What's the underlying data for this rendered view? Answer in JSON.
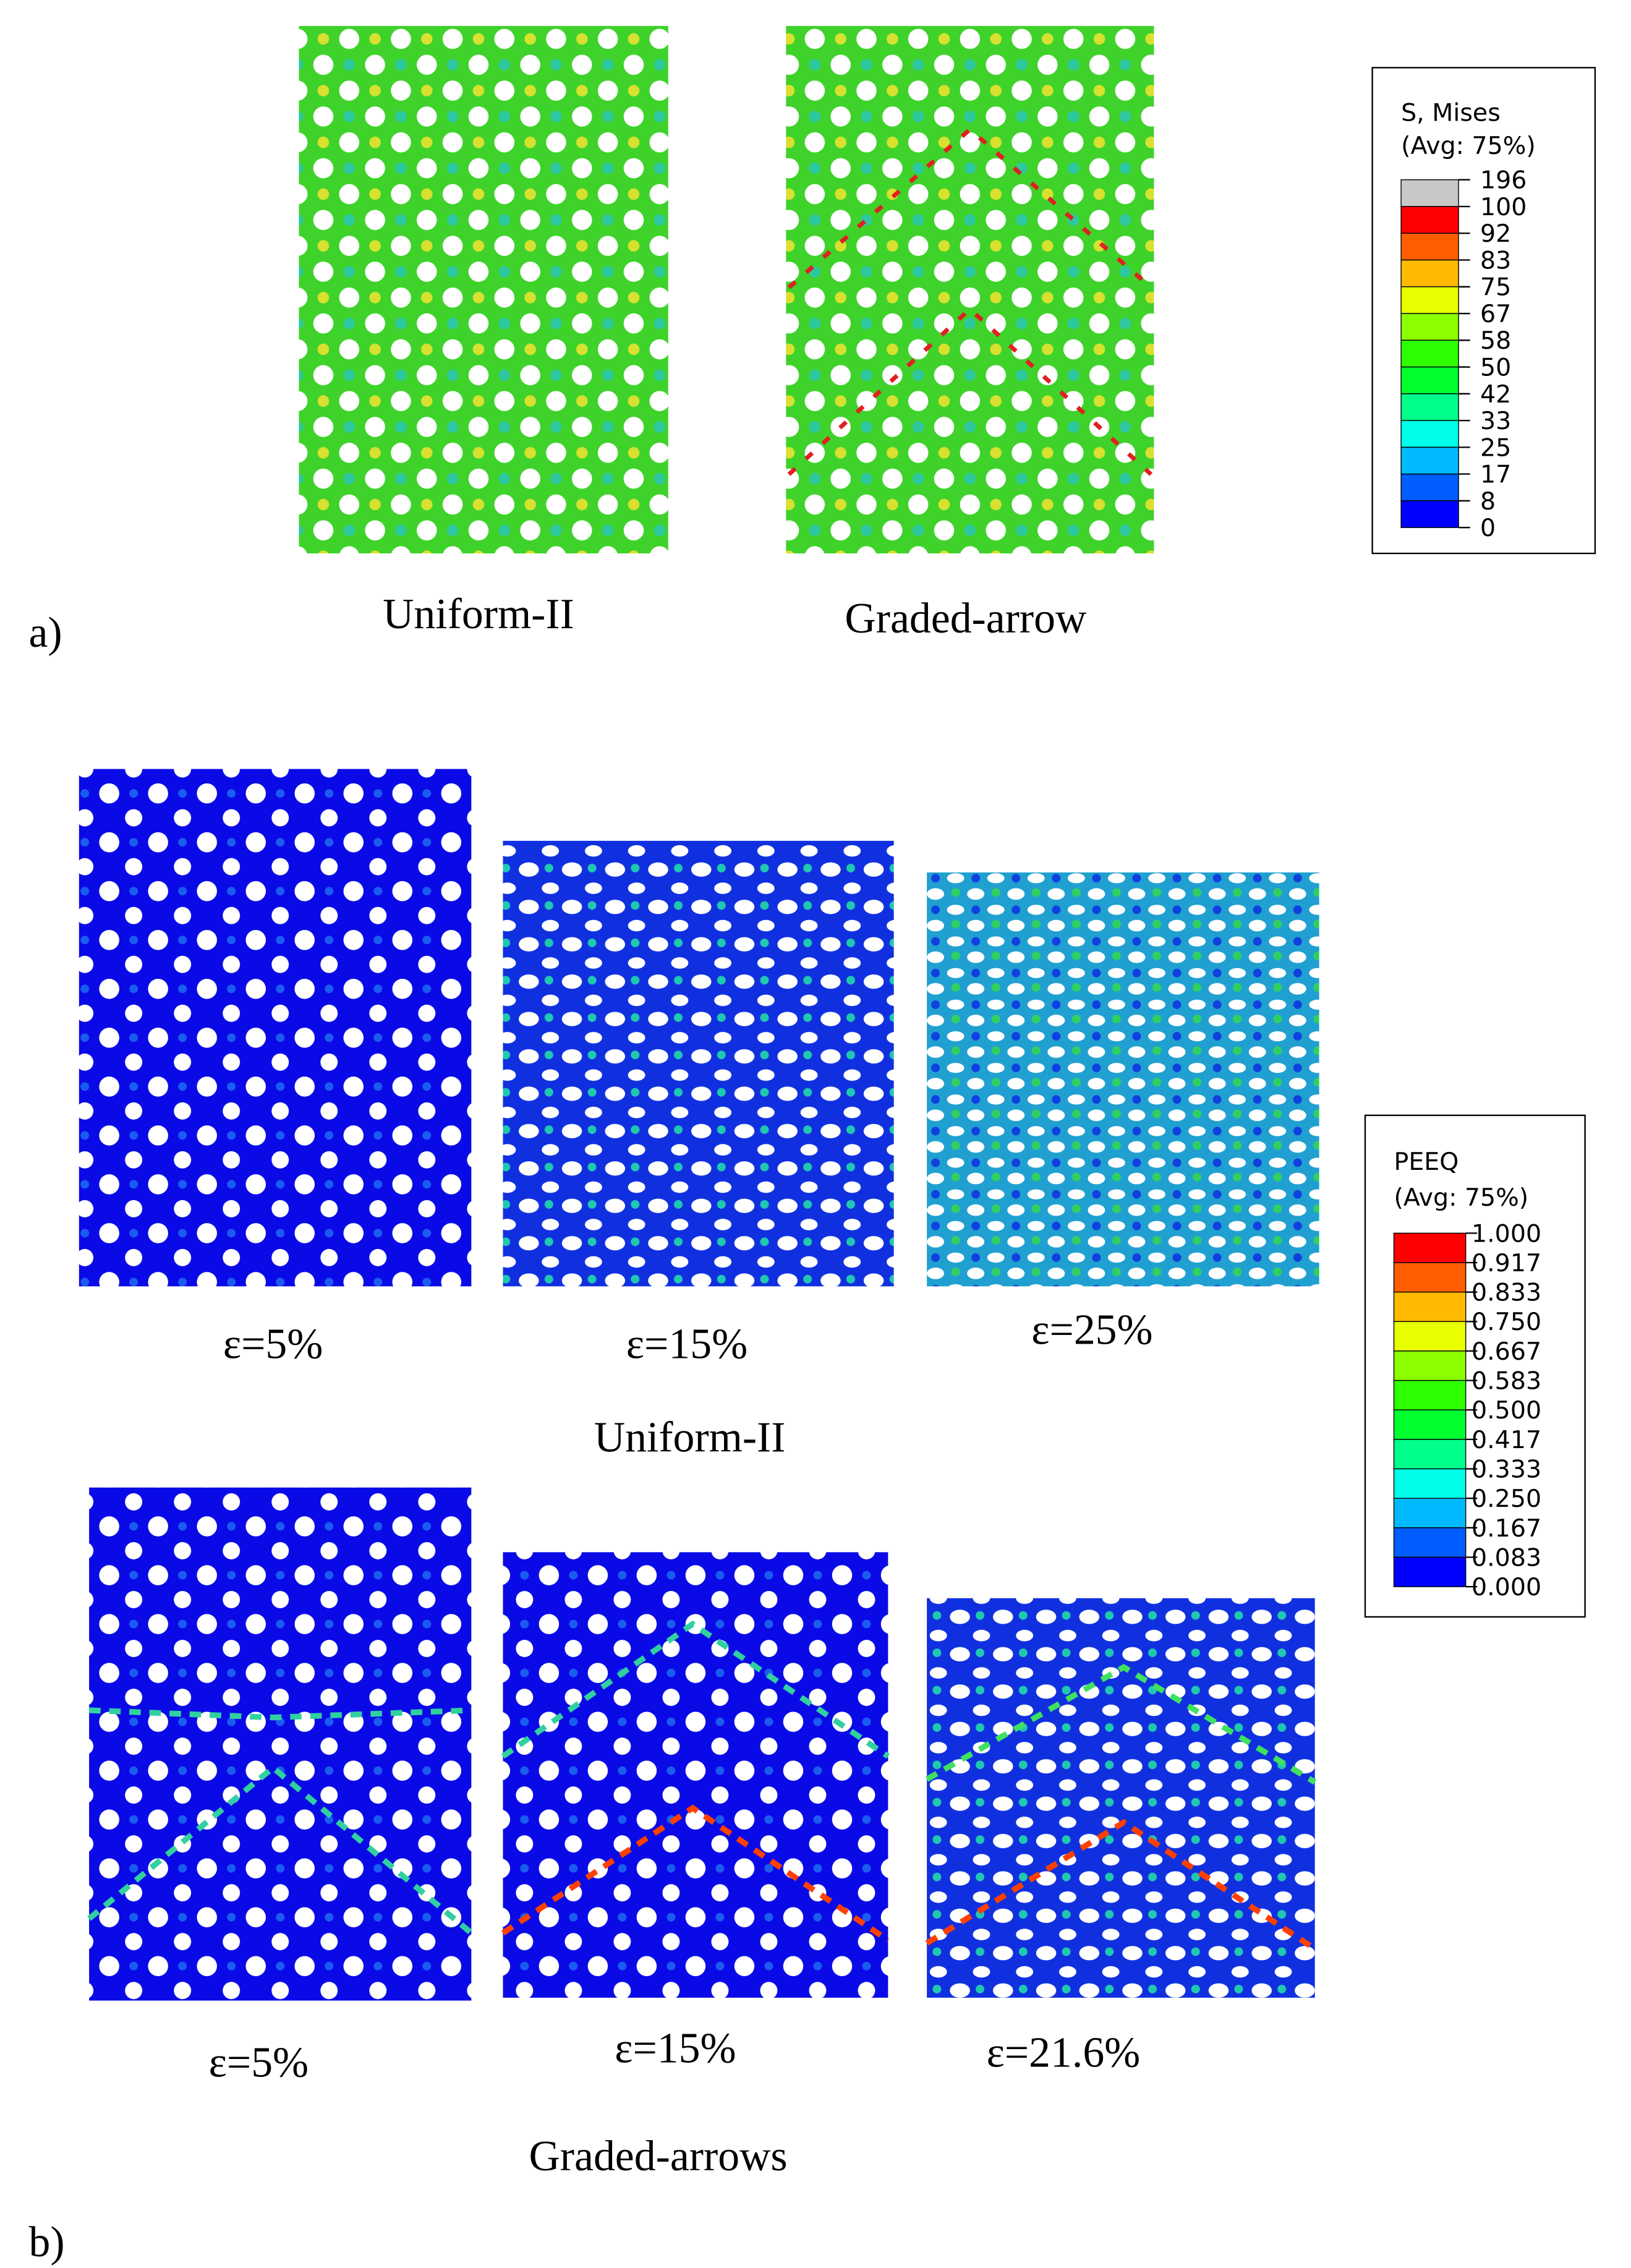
{
  "panel_a": {
    "label": "a)",
    "captions": [
      "Uniform-II",
      "Graded-arrow"
    ],
    "legend": {
      "title": "S, Mises",
      "subtitle": "(Avg: 75%)",
      "labels": [
        "196",
        "100",
        "92",
        "83",
        "75",
        "67",
        "58",
        "50",
        "42",
        "33",
        "25",
        "17",
        "8",
        "0"
      ],
      "colors": [
        "#c8c8c8",
        "#ff0000",
        "#ff5d00",
        "#ffb900",
        "#e8ff00",
        "#8bff00",
        "#2eff00",
        "#00ff2e",
        "#00ff8b",
        "#00ffe8",
        "#00b9ff",
        "#005dff",
        "#0000ff"
      ]
    }
  },
  "panel_b": {
    "label": "b)",
    "rows": [
      {
        "title": "Uniform-II",
        "captions": [
          "ε=5%",
          "ε=15%",
          "ε=25%"
        ]
      },
      {
        "title": "Graded-arrows",
        "captions": [
          "ε=5%",
          "ε=15%",
          "ε=21.6%"
        ]
      }
    ],
    "legend": {
      "title": "PEEQ",
      "subtitle": "(Avg: 75%)",
      "labels": [
        "1.000",
        "0.917",
        "0.833",
        "0.750",
        "0.667",
        "0.583",
        "0.500",
        "0.417",
        "0.333",
        "0.250",
        "0.167",
        "0.083",
        "0.000"
      ],
      "colors": [
        "#ff0000",
        "#ff5d00",
        "#ffb900",
        "#e8ff00",
        "#8bff00",
        "#2eff00",
        "#00ff2e",
        "#00ff8b",
        "#00ffe8",
        "#00b9ff",
        "#005dff",
        "#0000ff"
      ]
    }
  }
}
